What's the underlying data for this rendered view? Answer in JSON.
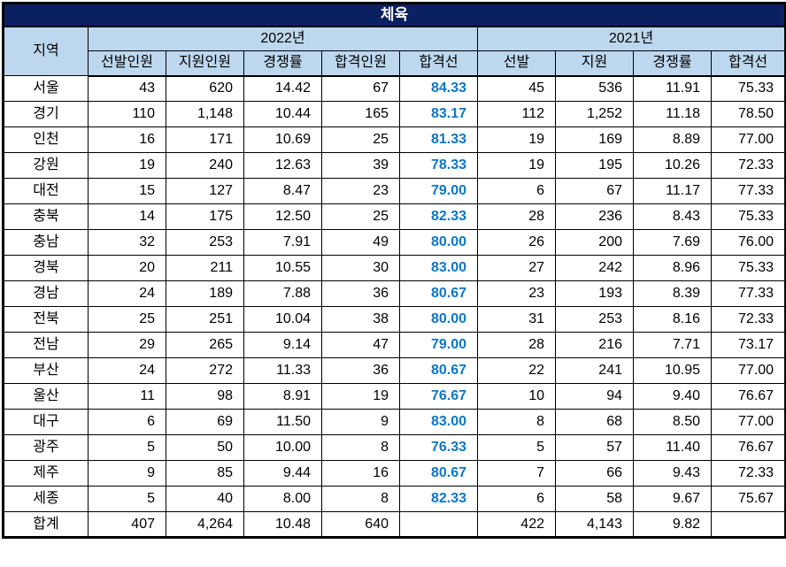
{
  "title": "체육",
  "chart_data": {
    "type": "table",
    "title": "체육",
    "region_header": "지역",
    "year_groups": [
      {
        "label": "2022년",
        "columns": [
          "선발인원",
          "지원인원",
          "경쟁률",
          "합격인원",
          "합격선"
        ]
      },
      {
        "label": "2021년",
        "columns": [
          "선발",
          "지원",
          "경쟁률",
          "합격선"
        ]
      }
    ],
    "highlight_column": "2022년 합격선",
    "rows": [
      {
        "region": "서울",
        "values": [
          "43",
          "620",
          "14.42",
          "67",
          "84.33",
          "45",
          "536",
          "11.91",
          "75.33"
        ]
      },
      {
        "region": "경기",
        "values": [
          "110",
          "1,148",
          "10.44",
          "165",
          "83.17",
          "112",
          "1,252",
          "11.18",
          "78.50"
        ]
      },
      {
        "region": "인천",
        "values": [
          "16",
          "171",
          "10.69",
          "25",
          "81.33",
          "19",
          "169",
          "8.89",
          "77.00"
        ]
      },
      {
        "region": "강원",
        "values": [
          "19",
          "240",
          "12.63",
          "39",
          "78.33",
          "19",
          "195",
          "10.26",
          "72.33"
        ]
      },
      {
        "region": "대전",
        "values": [
          "15",
          "127",
          "8.47",
          "23",
          "79.00",
          "6",
          "67",
          "11.17",
          "77.33"
        ]
      },
      {
        "region": "충북",
        "values": [
          "14",
          "175",
          "12.50",
          "25",
          "82.33",
          "28",
          "236",
          "8.43",
          "75.33"
        ]
      },
      {
        "region": "충남",
        "values": [
          "32",
          "253",
          "7.91",
          "49",
          "80.00",
          "26",
          "200",
          "7.69",
          "76.00"
        ]
      },
      {
        "region": "경북",
        "values": [
          "20",
          "211",
          "10.55",
          "30",
          "83.00",
          "27",
          "242",
          "8.96",
          "75.33"
        ]
      },
      {
        "region": "경남",
        "values": [
          "24",
          "189",
          "7.88",
          "36",
          "80.67",
          "23",
          "193",
          "8.39",
          "77.33"
        ]
      },
      {
        "region": "전북",
        "values": [
          "25",
          "251",
          "10.04",
          "38",
          "80.00",
          "31",
          "253",
          "8.16",
          "72.33"
        ]
      },
      {
        "region": "전남",
        "values": [
          "29",
          "265",
          "9.14",
          "47",
          "79.00",
          "28",
          "216",
          "7.71",
          "73.17"
        ]
      },
      {
        "region": "부산",
        "values": [
          "24",
          "272",
          "11.33",
          "36",
          "80.67",
          "22",
          "241",
          "10.95",
          "77.00"
        ]
      },
      {
        "region": "울산",
        "values": [
          "11",
          "98",
          "8.91",
          "19",
          "76.67",
          "10",
          "94",
          "9.40",
          "76.67"
        ]
      },
      {
        "region": "대구",
        "values": [
          "6",
          "69",
          "11.50",
          "9",
          "83.00",
          "8",
          "68",
          "8.50",
          "77.00"
        ]
      },
      {
        "region": "광주",
        "values": [
          "5",
          "50",
          "10.00",
          "8",
          "76.33",
          "5",
          "57",
          "11.40",
          "76.67"
        ]
      },
      {
        "region": "제주",
        "values": [
          "9",
          "85",
          "9.44",
          "16",
          "80.67",
          "7",
          "66",
          "9.43",
          "72.33"
        ]
      },
      {
        "region": "세종",
        "values": [
          "5",
          "40",
          "8.00",
          "8",
          "82.33",
          "6",
          "58",
          "9.67",
          "75.67"
        ]
      }
    ],
    "total": {
      "region": "합계",
      "values": [
        "407",
        "4,264",
        "10.48",
        "640",
        "",
        "422",
        "4,143",
        "9.82",
        ""
      ]
    }
  },
  "colors": {
    "title_bg": "#0B2060",
    "title_text": "#FFFFFF",
    "header_bg": "#BDD7EE",
    "highlight_text": "#0B77C9",
    "border": "#000000",
    "row_bg": "#FFFFFF"
  }
}
